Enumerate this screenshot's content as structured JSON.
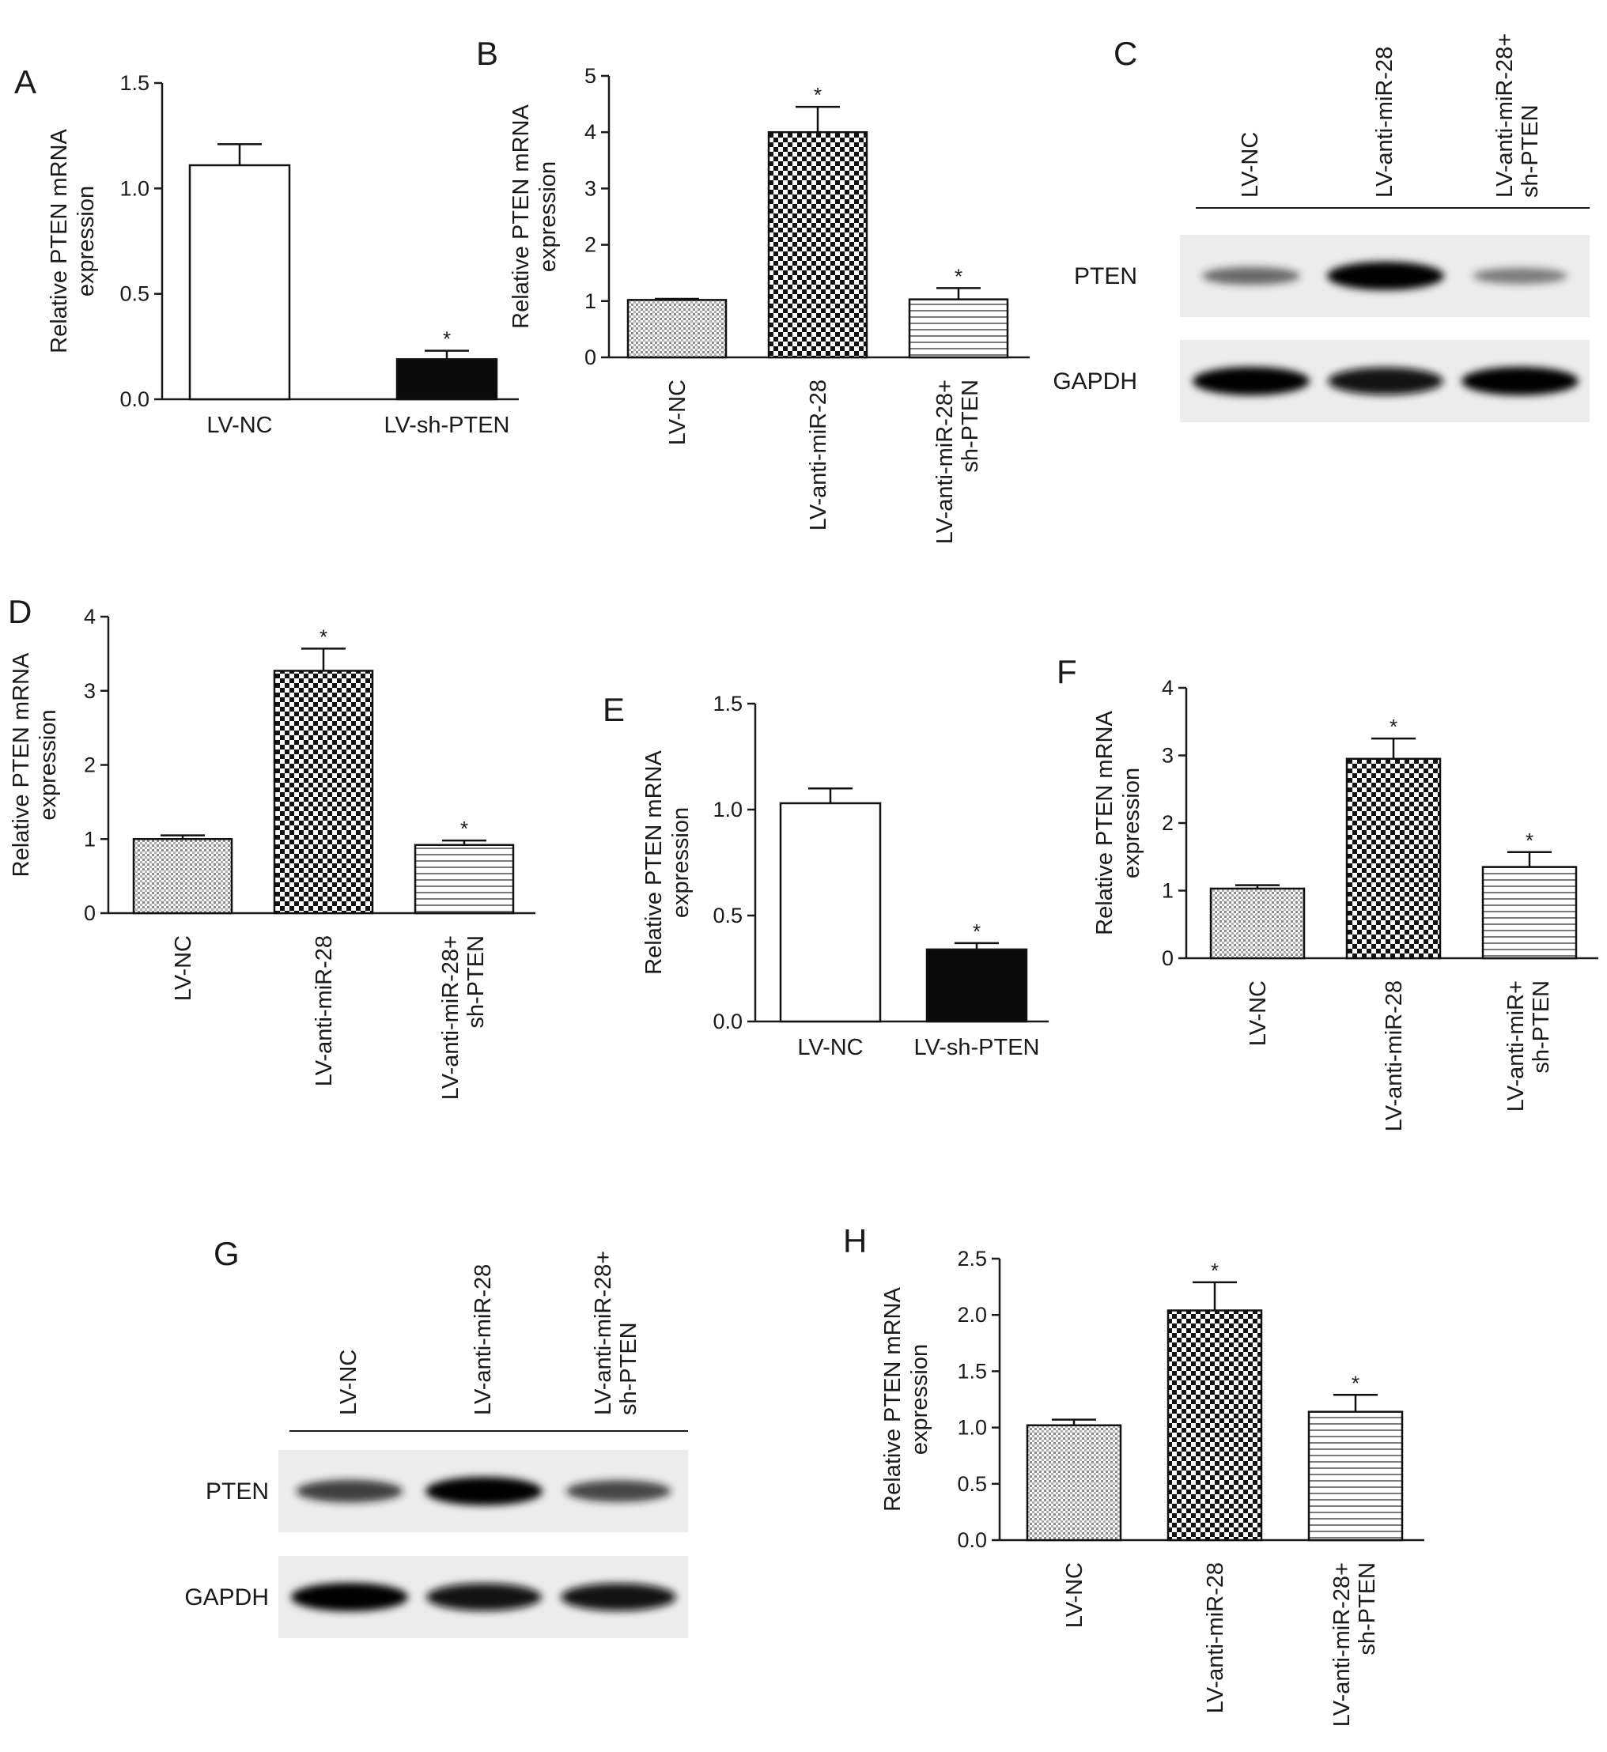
{
  "figure": {
    "panels": [
      {
        "letter": "A"
      },
      {
        "letter": "B"
      },
      {
        "letter": "C"
      },
      {
        "letter": "D"
      },
      {
        "letter": "E"
      },
      {
        "letter": "F"
      },
      {
        "letter": "G"
      },
      {
        "letter": "H"
      }
    ]
  },
  "western_blots": [
    {
      "panel": "C",
      "lanes": [
        "LV-NC",
        "LV-anti-miR-28",
        "LV-anti-miR-28+\nsh-PTEN"
      ],
      "bands": [
        {
          "name": "PTEN",
          "intensity": [
            0.45,
            1.0,
            0.35
          ]
        },
        {
          "name": "GAPDH",
          "intensity": [
            1.0,
            0.95,
            1.0
          ]
        }
      ]
    },
    {
      "panel": "G",
      "lanes": [
        "LV-NC",
        "LV-anti-miR-28",
        "LV-anti-miR-28+\nsh-PTEN"
      ],
      "bands": [
        {
          "name": "PTEN",
          "intensity": [
            0.7,
            1.0,
            0.65
          ]
        },
        {
          "name": "GAPDH",
          "intensity": [
            1.0,
            0.95,
            0.95
          ]
        }
      ]
    }
  ],
  "chart_data": [
    {
      "panel": "A",
      "type": "bar",
      "ylabel": "Relative PTEN mRNA\nexpression",
      "categories": [
        "LV-NC",
        "LV-sh-PTEN"
      ],
      "values": [
        1.11,
        0.19
      ],
      "errors": [
        0.1,
        0.04
      ],
      "significance": [
        "",
        "*"
      ],
      "fills": [
        "white",
        "black"
      ],
      "ylim": [
        0,
        1.5
      ],
      "yticks": [
        "0.0",
        "0.5",
        "1.0",
        "1.5"
      ],
      "grid": false
    },
    {
      "panel": "B",
      "type": "bar",
      "ylabel": "Relative PTEN mRNA\nexpression",
      "categories": [
        "LV-NC",
        "LV-anti-miR-28",
        "LV-anti-miR-28+\nsh-PTEN"
      ],
      "values": [
        1.02,
        4.0,
        1.03
      ],
      "errors": [
        0.02,
        0.45,
        0.2
      ],
      "significance": [
        "",
        "*",
        "*"
      ],
      "fills": [
        "fine-dots",
        "checker",
        "hlines"
      ],
      "ylim": [
        0,
        5
      ],
      "yticks": [
        "0",
        "1",
        "2",
        "3",
        "4",
        "5"
      ],
      "grid": false
    },
    {
      "panel": "D",
      "type": "bar",
      "ylabel": "Relative PTEN mRNA\nexpression",
      "categories": [
        "LV-NC",
        "LV-anti-miR-28",
        "LV-anti-miR-28+\nsh-PTEN"
      ],
      "values": [
        1.0,
        3.27,
        0.92
      ],
      "errors": [
        0.05,
        0.3,
        0.06
      ],
      "significance": [
        "",
        "*",
        "*"
      ],
      "fills": [
        "fine-dots",
        "checker",
        "hlines"
      ],
      "ylim": [
        0,
        4
      ],
      "yticks": [
        "0",
        "1",
        "2",
        "3",
        "4"
      ],
      "grid": false
    },
    {
      "panel": "E",
      "type": "bar",
      "ylabel": "Relative PTEN mRNA\nexpression",
      "categories": [
        "LV-NC",
        "LV-sh-PTEN"
      ],
      "values": [
        1.03,
        0.34
      ],
      "errors": [
        0.07,
        0.03
      ],
      "significance": [
        "",
        "*"
      ],
      "fills": [
        "white",
        "black"
      ],
      "ylim": [
        0,
        1.5
      ],
      "yticks": [
        "0.0",
        "0.5",
        "1.0",
        "1.5"
      ],
      "grid": false
    },
    {
      "panel": "F",
      "type": "bar",
      "ylabel": "Relative PTEN mRNA\nexpression",
      "categories": [
        "LV-NC",
        "LV-anti-miR-28",
        "LV-anti-miR+\nsh-PTEN"
      ],
      "values": [
        1.03,
        2.95,
        1.35
      ],
      "errors": [
        0.05,
        0.3,
        0.22
      ],
      "significance": [
        "",
        "*",
        "*"
      ],
      "fills": [
        "fine-dots",
        "checker",
        "hlines"
      ],
      "ylim": [
        0,
        4
      ],
      "yticks": [
        "0",
        "1",
        "2",
        "3",
        "4"
      ],
      "grid": false
    },
    {
      "panel": "H",
      "type": "bar",
      "ylabel": "Relative PTEN mRNA\nexpression",
      "categories": [
        "LV-NC",
        "LV-anti-miR-28",
        "LV-anti-miR-28+\nsh-PTEN"
      ],
      "values": [
        1.02,
        2.04,
        1.14
      ],
      "errors": [
        0.05,
        0.25,
        0.15
      ],
      "significance": [
        "",
        "*",
        "*"
      ],
      "fills": [
        "fine-dots",
        "checker",
        "hlines"
      ],
      "ylim": [
        0,
        2.5
      ],
      "yticks": [
        "0.0",
        "0.5",
        "1.0",
        "1.5",
        "2.0",
        "2.5"
      ],
      "grid": false
    }
  ]
}
